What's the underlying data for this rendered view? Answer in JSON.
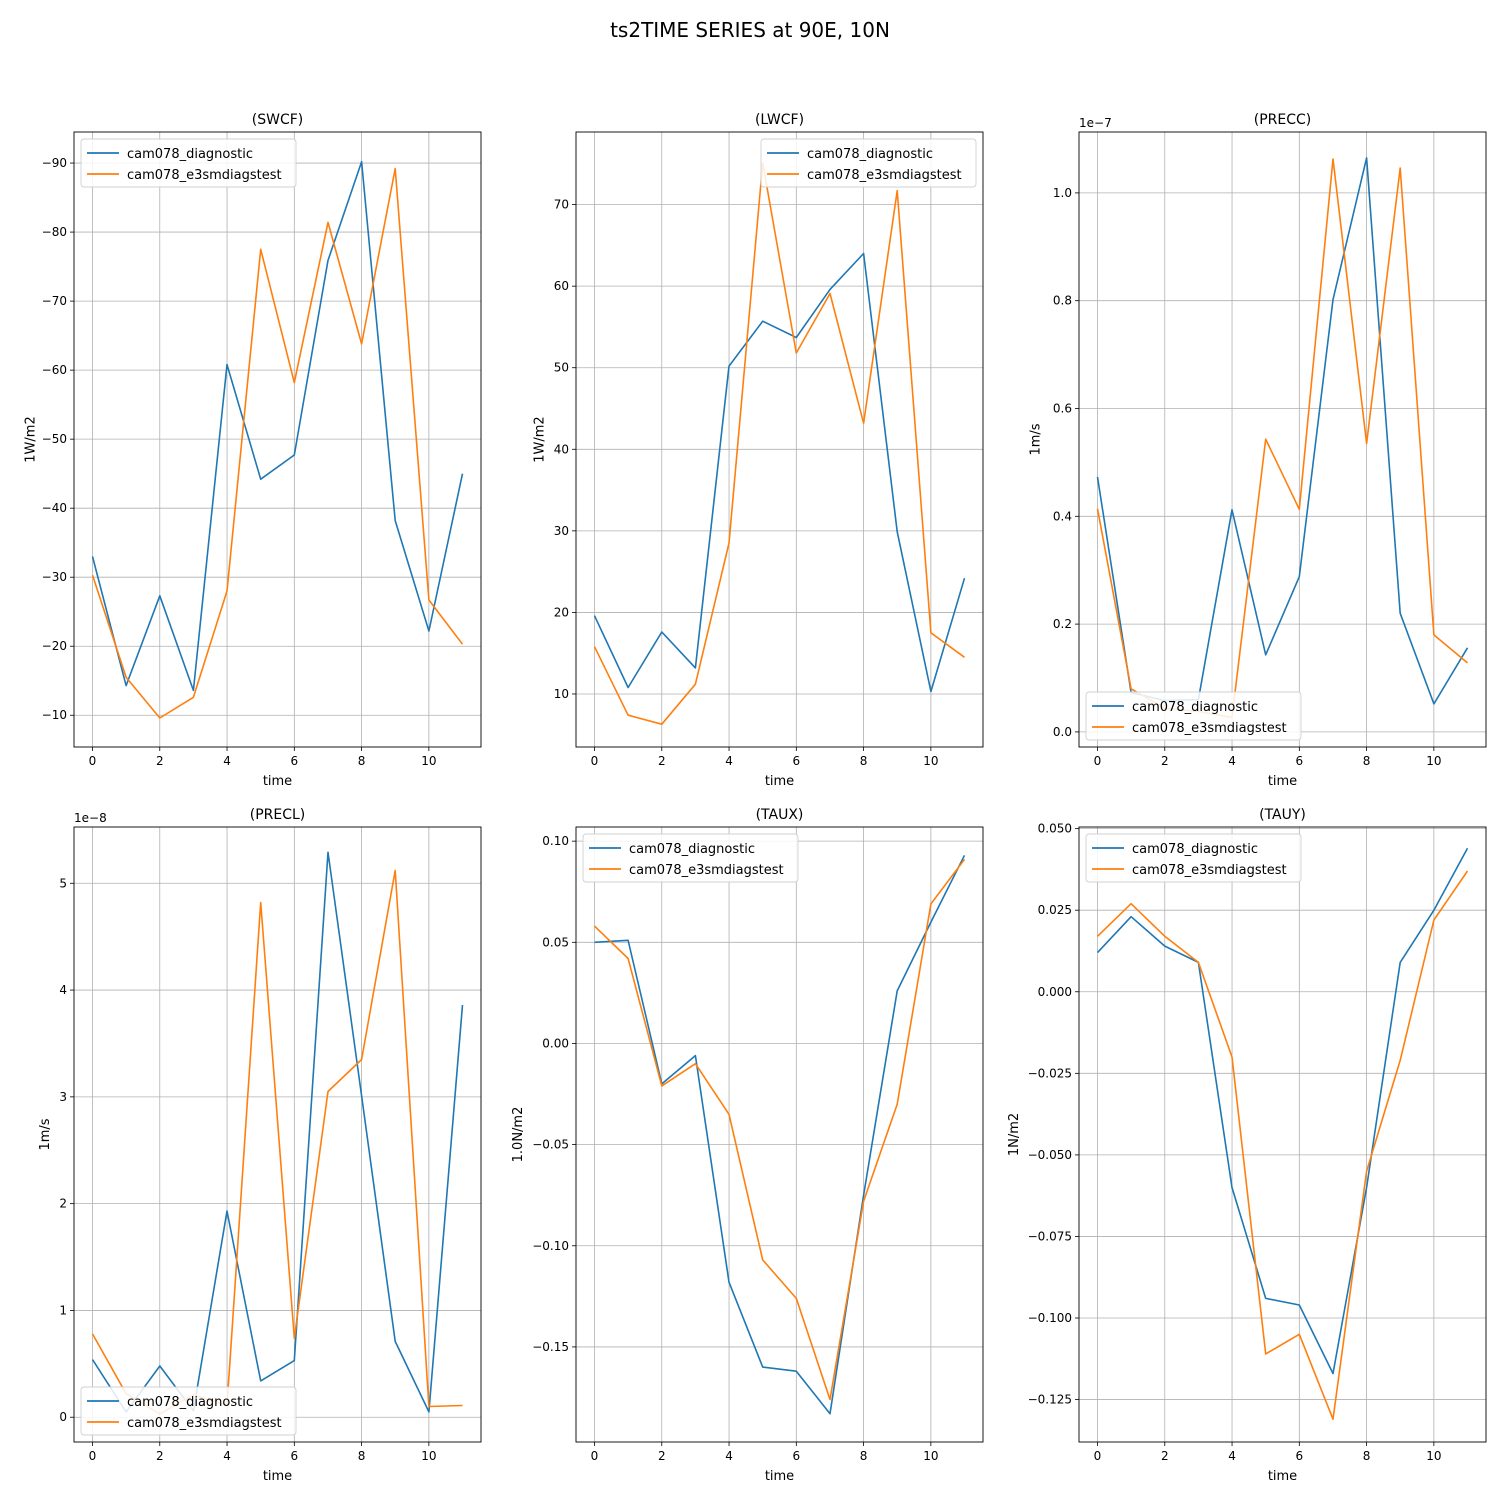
{
  "figure": {
    "title": "ts2TIME SERIES at 90E, 10N",
    "series_names": [
      "cam078_diagnostic",
      "cam078_e3smdiagstest"
    ],
    "series_colors": [
      "#1f77b4",
      "#ff7f0e"
    ]
  },
  "chart_data": [
    {
      "type": "line",
      "title": "(SWCF)",
      "xlabel": "time",
      "ylabel": "1W/m2",
      "x": [
        0,
        1,
        2,
        3,
        4,
        5,
        6,
        7,
        8,
        9,
        10,
        11
      ],
      "xlim": [
        -0.55,
        11.55
      ],
      "ylim": [
        -5.4,
        -94.5
      ],
      "yticks": [
        -90,
        -80,
        -70,
        -60,
        -50,
        -40,
        -30,
        -20,
        -10
      ],
      "ytick_labels": [
        "−90",
        "−80",
        "−70",
        "−60",
        "−50",
        "−40",
        "−30",
        "−20",
        "−10"
      ],
      "xticks": [
        0,
        2,
        4,
        6,
        8,
        10
      ],
      "ytick_offset": "",
      "grid": true,
      "legend": "upper left",
      "series": [
        {
          "name": "cam078_diagnostic",
          "values": [
            -33.0,
            -14.3,
            -27.3,
            -13.6,
            -60.8,
            -44.2,
            -47.7,
            -75.9,
            -90.2,
            -38.2,
            -22.2,
            -45.0
          ]
        },
        {
          "name": "cam078_e3smdiagstest",
          "values": [
            -30.3,
            -15.5,
            -9.6,
            -12.6,
            -28.0,
            -77.5,
            -58.2,
            -81.4,
            -63.8,
            -89.2,
            -26.7,
            -20.3
          ]
        }
      ]
    },
    {
      "type": "line",
      "title": "(LWCF)",
      "xlabel": "time",
      "ylabel": "1W/m2",
      "x": [
        0,
        1,
        2,
        3,
        4,
        5,
        6,
        7,
        8,
        9,
        10,
        11
      ],
      "xlim": [
        -0.55,
        11.55
      ],
      "ylim": [
        3.5,
        78.9
      ],
      "yticks": [
        10,
        20,
        30,
        40,
        50,
        60,
        70
      ],
      "ytick_labels": [
        "10",
        "20",
        "30",
        "40",
        "50",
        "60",
        "70"
      ],
      "xticks": [
        0,
        2,
        4,
        6,
        8,
        10
      ],
      "ytick_offset": "",
      "grid": true,
      "legend": "upper right",
      "series": [
        {
          "name": "cam078_diagnostic",
          "values": [
            19.6,
            10.8,
            17.6,
            13.2,
            50.2,
            55.7,
            53.7,
            59.6,
            64.0,
            29.9,
            10.3,
            24.2
          ]
        },
        {
          "name": "cam078_e3smdiagstest",
          "values": [
            15.8,
            7.4,
            6.3,
            11.2,
            28.5,
            75.1,
            51.8,
            59.1,
            43.2,
            71.7,
            17.5,
            14.5
          ]
        }
      ]
    },
    {
      "type": "line",
      "title": "(PRECC)",
      "xlabel": "time",
      "ylabel": "1m/s",
      "x": [
        0,
        1,
        2,
        3,
        4,
        5,
        6,
        7,
        8,
        9,
        10,
        11
      ],
      "xlim": [
        -0.55,
        11.55
      ],
      "ylim": [
        -0.028,
        1.113
      ],
      "yticks": [
        0.0,
        0.2,
        0.4,
        0.6,
        0.8,
        1.0
      ],
      "ytick_labels": [
        "0.0",
        "0.2",
        "0.4",
        "0.6",
        "0.8",
        "1.0"
      ],
      "xticks": [
        0,
        2,
        4,
        6,
        8,
        10
      ],
      "ytick_offset": "1e−7",
      "grid": true,
      "legend": "lower left",
      "series": [
        {
          "name": "cam078_diagnostic",
          "values": [
            0.473,
            0.073,
            0.058,
            0.06,
            0.412,
            0.143,
            0.288,
            0.802,
            1.065,
            0.22,
            0.052,
            0.156
          ]
        },
        {
          "name": "cam078_e3smdiagstest",
          "values": [
            0.414,
            0.08,
            0.044,
            0.038,
            0.027,
            0.543,
            0.413,
            1.063,
            0.535,
            1.046,
            0.18,
            0.128
          ]
        }
      ]
    },
    {
      "type": "line",
      "title": "(PRECL)",
      "xlabel": "time",
      "ylabel": "1m/s",
      "x": [
        0,
        1,
        2,
        3,
        4,
        5,
        6,
        7,
        8,
        9,
        10,
        11
      ],
      "xlim": [
        -0.55,
        11.55
      ],
      "ylim": [
        -0.232,
        5.527
      ],
      "yticks": [
        0,
        1,
        2,
        3,
        4,
        5
      ],
      "ytick_labels": [
        "0",
        "1",
        "2",
        "3",
        "4",
        "5"
      ],
      "xticks": [
        0,
        2,
        4,
        6,
        8,
        10
      ],
      "ytick_offset": "1e−8",
      "grid": true,
      "legend": "lower left",
      "series": [
        {
          "name": "cam078_diagnostic",
          "values": [
            0.54,
            0.05,
            0.48,
            0.06,
            1.93,
            0.34,
            0.53,
            5.29,
            3.01,
            0.71,
            0.05,
            3.86
          ]
        },
        {
          "name": "cam078_e3smdiagstest",
          "values": [
            0.78,
            0.22,
            0.03,
            0.21,
            0.11,
            4.82,
            0.74,
            3.05,
            3.35,
            5.12,
            0.1,
            0.11
          ]
        }
      ]
    },
    {
      "type": "line",
      "title": "(TAUX)",
      "xlabel": "time",
      "ylabel": "1.0N/m2",
      "x": [
        0,
        1,
        2,
        3,
        4,
        5,
        6,
        7,
        8,
        9,
        10,
        11
      ],
      "xlim": [
        -0.55,
        11.55
      ],
      "ylim": [
        -0.197,
        0.107
      ],
      "yticks": [
        -0.15,
        -0.1,
        -0.05,
        0.0,
        0.05,
        0.1
      ],
      "ytick_labels": [
        "−0.15",
        "−0.10",
        "−0.05",
        "0.00",
        "0.05",
        "0.10"
      ],
      "xticks": [
        0,
        2,
        4,
        6,
        8,
        10
      ],
      "ytick_offset": "",
      "grid": true,
      "legend": "upper left",
      "series": [
        {
          "name": "cam078_diagnostic",
          "values": [
            0.05,
            0.051,
            -0.02,
            -0.006,
            -0.118,
            -0.16,
            -0.162,
            -0.183,
            -0.075,
            0.026,
            0.06,
            0.093
          ]
        },
        {
          "name": "cam078_e3smdiagstest",
          "values": [
            0.058,
            0.042,
            -0.021,
            -0.01,
            -0.035,
            -0.107,
            -0.126,
            -0.176,
            -0.078,
            -0.03,
            0.069,
            0.091
          ]
        }
      ]
    },
    {
      "type": "line",
      "title": "(TAUY)",
      "xlabel": "time",
      "ylabel": "1N/m2",
      "x": [
        0,
        1,
        2,
        3,
        4,
        5,
        6,
        7,
        8,
        9,
        10,
        11
      ],
      "xlim": [
        -0.55,
        11.55
      ],
      "ylim": [
        -0.138,
        0.0505
      ],
      "yticks": [
        -0.125,
        -0.1,
        -0.075,
        -0.05,
        -0.025,
        0.0,
        0.025,
        0.05
      ],
      "ytick_labels": [
        "−0.125",
        "−0.100",
        "−0.075",
        "−0.050",
        "−0.025",
        "0.000",
        "0.025",
        "0.050"
      ],
      "xticks": [
        0,
        2,
        4,
        6,
        8,
        10
      ],
      "ytick_offset": "",
      "grid": true,
      "legend": "upper left",
      "series": [
        {
          "name": "cam078_diagnostic",
          "values": [
            0.012,
            0.023,
            0.014,
            0.009,
            -0.06,
            -0.094,
            -0.096,
            -0.117,
            -0.06,
            0.009,
            0.025,
            0.044
          ]
        },
        {
          "name": "cam078_e3smdiagstest",
          "values": [
            0.017,
            0.027,
            0.017,
            0.009,
            -0.02,
            -0.111,
            -0.105,
            -0.131,
            -0.055,
            -0.021,
            0.022,
            0.037
          ]
        }
      ]
    }
  ]
}
